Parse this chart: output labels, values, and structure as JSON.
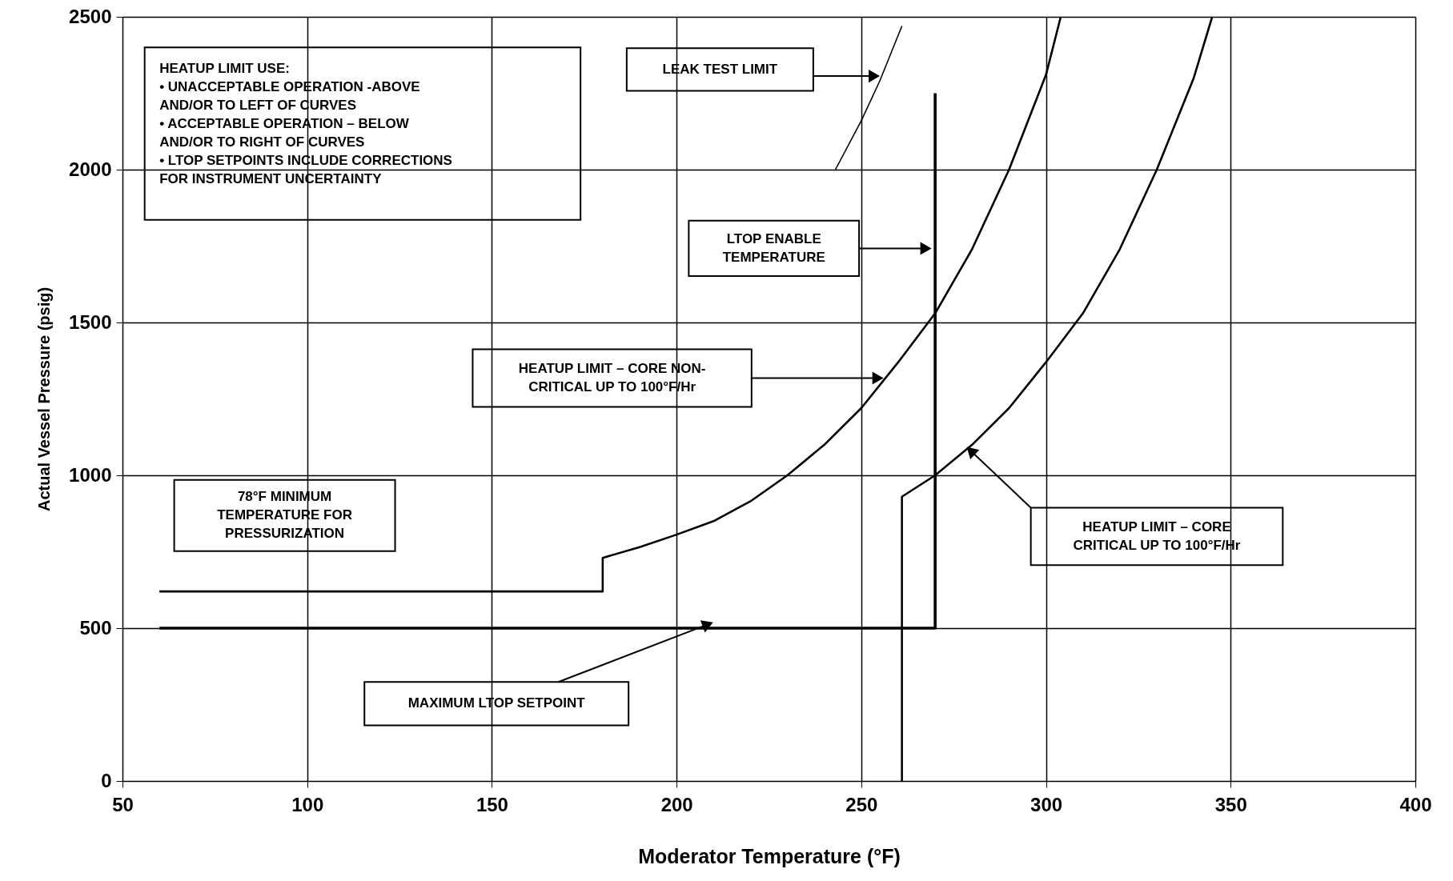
{
  "chart_data": {
    "type": "line",
    "xlabel": "Moderator Temperature (°F)",
    "ylabel": "Actual Vessel Pressure (psig)",
    "xlim": [
      50,
      400
    ],
    "ylim": [
      0,
      2500
    ],
    "xticks": [
      50,
      100,
      150,
      200,
      250,
      300,
      350,
      400
    ],
    "yticks": [
      0,
      500,
      1000,
      1500,
      2000,
      2500
    ],
    "grid": true,
    "series": [
      {
        "color": "#000000",
        "x": [
          60,
          180,
          180,
          190,
          200,
          210,
          220,
          230,
          240,
          250,
          260,
          270,
          280,
          290,
          300,
          304
        ],
        "values": [
          620,
          620,
          730,
          765,
          806,
          850,
          915,
          1000,
          1100,
          1220,
          1370,
          1530,
          1740,
          2000,
          2310,
          2500
        ]
      },
      {
        "color": "#000000",
        "x": [
          261,
          261,
          270,
          280,
          290,
          300,
          310,
          320,
          330,
          340,
          345
        ],
        "values": [
          0,
          930,
          1000,
          1100,
          1220,
          1370,
          1530,
          1740,
          2000,
          2300,
          2500
        ]
      },
      {
        "color": "#000000",
        "x": [
          243,
          250,
          255,
          261
        ],
        "values": [
          2000,
          2160,
          2290,
          2470
        ]
      },
      {
        "color": "#000000",
        "x": [
          60,
          270,
          270
        ],
        "values": [
          500,
          500,
          2250
        ]
      }
    ],
    "annotations": [
      "HEATUP LIMIT USE:\n•      UNACCEPTABLE OPERATION  -ABOVE\nAND/OR TO LEFT OF CURVES\n•      ACCEPTABLE OPERATION – BELOW\nAND/OR TO RIGHT OF CURVES\n•      LTOP SETPOINTS INCLUDE CORRECTIONS\nFOR INSTRUMENT UNCERTAINTY",
      "LEAK TEST LIMIT",
      "LTOP ENABLE\nTEMPERATURE",
      "HEATUP LIMIT – CORE NON-\nCRITICAL UP TO 100°F/Hr",
      "HEATUP LIMIT – CORE\nCRITICAL UP TO 100°F/Hr",
      "78°F MINIMUM\nTEMPERATURE FOR\nPRESSURIZATION",
      "MAXIMUM LTOP SETPOINT"
    ]
  }
}
